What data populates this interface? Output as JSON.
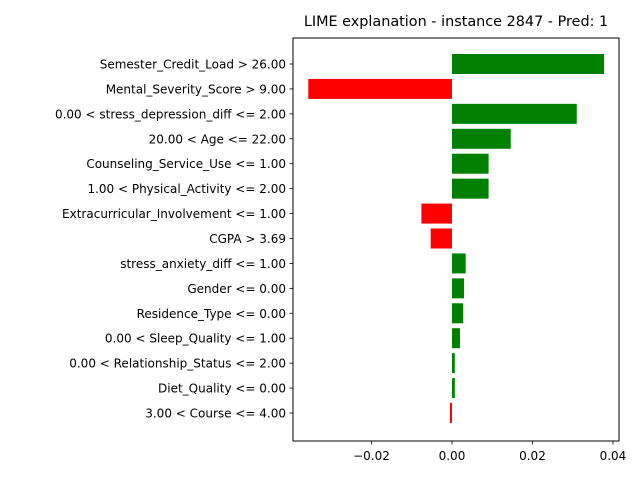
{
  "chart_data": {
    "type": "bar",
    "orientation": "horizontal",
    "title": "LIME explanation - instance 2847 - Pred: 1",
    "xlabel": "",
    "ylabel": "",
    "xlim": [
      -0.0395,
      0.0415
    ],
    "xticks": [
      -0.02,
      0.0,
      0.02,
      0.04
    ],
    "xtick_labels": [
      "−0.02",
      "0.00",
      "0.02",
      "0.04"
    ],
    "grid": false,
    "positive_color": "#008000",
    "negative_color": "#ff0000",
    "categories": [
      "Semester_Credit_Load > 26.00",
      "Mental_Severity_Score > 9.00",
      "0.00 < stress_depression_diff <= 2.00",
      "20.00 < Age <= 22.00",
      "Counseling_Service_Use <= 1.00",
      "1.00 < Physical_Activity <= 2.00",
      "Extracurricular_Involvement <= 1.00",
      "CGPA > 3.69",
      "stress_anxiety_diff <= 1.00",
      "Gender <= 0.00",
      "Residence_Type <= 0.00",
      "0.00 < Sleep_Quality <= 1.00",
      "0.00 < Relationship_Status <= 2.00",
      "Diet_Quality <= 0.00",
      "3.00 < Course <= 4.00"
    ],
    "values": [
      0.0378,
      -0.0357,
      0.031,
      0.0146,
      0.0091,
      0.0091,
      -0.0076,
      -0.0053,
      0.0034,
      0.003,
      0.0028,
      0.002,
      0.0007,
      0.0007,
      -0.0005
    ]
  }
}
